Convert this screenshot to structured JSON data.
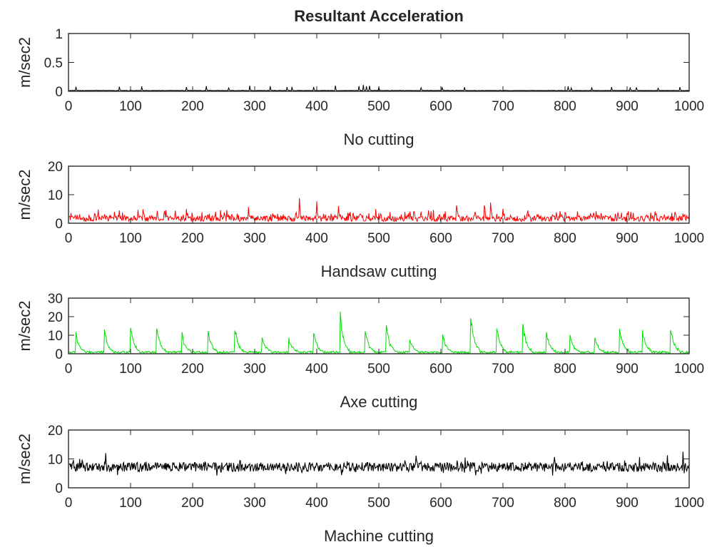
{
  "figure": {
    "title": "Resultant Acceleration"
  },
  "chart_data": [
    {
      "type": "line",
      "title": "Resultant Acceleration",
      "xlabel": "No cutting",
      "ylabel": "m/sec2",
      "xlim": [
        0,
        1000
      ],
      "ylim": [
        0,
        1
      ],
      "xticks": [
        "0",
        "100",
        "200",
        "300",
        "400",
        "500",
        "600",
        "700",
        "800",
        "900",
        "1000"
      ],
      "yticks": [
        "0",
        "0.5",
        "1"
      ],
      "grid": false,
      "color": "#000000",
      "pattern": {
        "baseline": 0.02,
        "noise": 0.008,
        "spikes": [
          [
            12,
            0.1
          ],
          [
            82,
            0.09
          ],
          [
            118,
            0.09
          ],
          [
            190,
            0.08
          ],
          [
            222,
            0.1
          ],
          [
            258,
            0.08
          ],
          [
            292,
            0.1
          ],
          [
            325,
            0.1
          ],
          [
            352,
            0.08
          ],
          [
            360,
            0.09
          ],
          [
            395,
            0.09
          ],
          [
            430,
            0.11
          ],
          [
            468,
            0.1
          ],
          [
            475,
            0.12
          ],
          [
            480,
            0.11
          ],
          [
            485,
            0.1
          ],
          [
            500,
            0.09
          ],
          [
            568,
            0.08
          ],
          [
            602,
            0.09
          ],
          [
            638,
            0.09
          ],
          [
            805,
            0.1
          ],
          [
            810,
            0.08
          ],
          [
            843,
            0.09
          ],
          [
            875,
            0.09
          ],
          [
            905,
            0.08
          ],
          [
            915,
            0.09
          ],
          [
            950,
            0.08
          ],
          [
            985,
            0.09
          ]
        ]
      }
    },
    {
      "type": "line",
      "xlabel": "Handsaw cutting",
      "ylabel": "m/sec2",
      "xlim": [
        0,
        1000
      ],
      "ylim": [
        0,
        20
      ],
      "xticks": [
        "0",
        "100",
        "200",
        "300",
        "400",
        "500",
        "600",
        "700",
        "800",
        "900",
        "1000"
      ],
      "yticks": [
        "0",
        "10",
        "20"
      ],
      "grid": false,
      "color": "#ff0000",
      "pattern": {
        "baseline": 1.6,
        "noise": 1.0,
        "spikes": [
          [
            42,
            3.8
          ],
          [
            80,
            3.0
          ],
          [
            120,
            4.5
          ],
          [
            155,
            3.0
          ],
          [
            190,
            5.0
          ],
          [
            225,
            3.2
          ],
          [
            245,
            4.0
          ],
          [
            255,
            4.5
          ],
          [
            290,
            5.0
          ],
          [
            330,
            3.5
          ],
          [
            372,
            7.2
          ],
          [
            400,
            5.5
          ],
          [
            435,
            6.0
          ],
          [
            470,
            3.5
          ],
          [
            495,
            5.0
          ],
          [
            550,
            3.5
          ],
          [
            580,
            4.0
          ],
          [
            625,
            7.0
          ],
          [
            655,
            5.5
          ],
          [
            670,
            6.0
          ],
          [
            680,
            5.5
          ],
          [
            700,
            5.0
          ],
          [
            740,
            4.0
          ],
          [
            800,
            4.5
          ],
          [
            820,
            3.5
          ],
          [
            845,
            3.5
          ],
          [
            885,
            3.5
          ],
          [
            900,
            4.0
          ],
          [
            930,
            4.0
          ],
          [
            960,
            3.0
          ],
          [
            990,
            2.5
          ]
        ]
      }
    },
    {
      "type": "line",
      "xlabel": "Axe cutting",
      "ylabel": "m/sec2",
      "xlim": [
        0,
        1000
      ],
      "ylim": [
        0,
        30
      ],
      "xticks": [
        "0",
        "100",
        "200",
        "300",
        "400",
        "500",
        "600",
        "700",
        "800",
        "900",
        "1000"
      ],
      "yticks": [
        "0",
        "10",
        "20",
        "30"
      ],
      "grid": false,
      "color": "#00dd00",
      "pattern": {
        "baseline": 0.8,
        "noise": 0.6,
        "spikes": [
          [
            12,
            12.5
          ],
          [
            58,
            15
          ],
          [
            100,
            17.5
          ],
          [
            142,
            16.5
          ],
          [
            183,
            11.5
          ],
          [
            225,
            14
          ],
          [
            268,
            16
          ],
          [
            312,
            10.5
          ],
          [
            355,
            10
          ],
          [
            395,
            13.5
          ],
          [
            438,
            23
          ],
          [
            478,
            15
          ],
          [
            512,
            17.5
          ],
          [
            550,
            9.5
          ],
          [
            603,
            12
          ],
          [
            648,
            24.5
          ],
          [
            690,
            17.5
          ],
          [
            732,
            19
          ],
          [
            770,
            13
          ],
          [
            808,
            11.5
          ],
          [
            848,
            10
          ],
          [
            888,
            16
          ],
          [
            925,
            14.5
          ],
          [
            970,
            16.5
          ]
        ]
      }
    },
    {
      "type": "line",
      "xlabel": "Machine cutting",
      "ylabel": "m/sec2",
      "xlim": [
        0,
        1000
      ],
      "ylim": [
        0,
        20
      ],
      "xticks": [
        "0",
        "100",
        "200",
        "300",
        "400",
        "500",
        "600",
        "700",
        "800",
        "900",
        "1000"
      ],
      "yticks": [
        "0",
        "10",
        "20"
      ],
      "grid": false,
      "color": "#000000",
      "pattern": {
        "baseline": 7.2,
        "noise": 1.6,
        "spikes": [
          [
            60,
            11
          ],
          [
            220,
            11.5
          ],
          [
            560,
            10.5
          ],
          [
            920,
            12.5
          ],
          [
            965,
            13.5
          ],
          [
            990,
            12.8
          ]
        ]
      }
    }
  ]
}
